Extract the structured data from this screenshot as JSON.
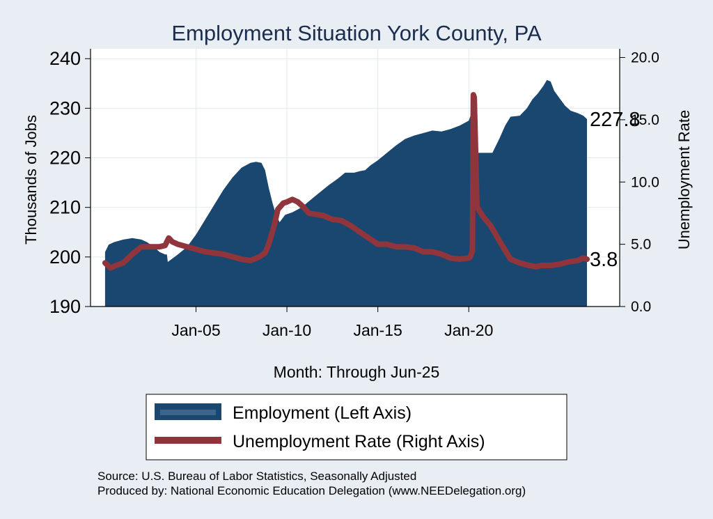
{
  "chart_data": {
    "type": "area+line (dual axis)",
    "title": "Employment Situation York  County, PA",
    "xlabel": "Month: Through Jun-25",
    "ylabel_left": "Thousands of Jobs",
    "ylabel_right": "Unemployment Rate",
    "x_ticks": [
      "Jan-05",
      "Jan-10",
      "Jan-15",
      "Jan-20"
    ],
    "y_left_ticks": [
      "190",
      "200",
      "210",
      "220",
      "230",
      "240"
    ],
    "y_right_ticks": [
      "0.0",
      "5.0",
      "10.0",
      "15.0",
      "20.0"
    ],
    "ylim_left": [
      190,
      242
    ],
    "ylim_right": [
      0,
      20.7
    ],
    "xlim": [
      1999.2,
      2028.3
    ],
    "x_data_start": "Jan-00",
    "x_data_end": "Jun-25",
    "last_employment_label": "227.8",
    "last_unemployment_label": "3.8",
    "series": [
      {
        "name": "Employment (Left Axis)",
        "color": "#1a476f",
        "axis": "left",
        "points": [
          [
            2000.0,
            201
          ],
          [
            2000.2,
            202.5
          ],
          [
            2000.5,
            203
          ],
          [
            2001.0,
            203.5
          ],
          [
            2001.5,
            203.8
          ],
          [
            2002.0,
            203.5
          ],
          [
            2002.3,
            203
          ],
          [
            2002.7,
            202
          ],
          [
            2003.0,
            201
          ],
          [
            2003.3,
            200.5
          ],
          [
            2003.4,
            200.5
          ],
          [
            2003.45,
            199
          ],
          [
            2004.0,
            200.5
          ],
          [
            2004.5,
            202
          ],
          [
            2005.0,
            204.5
          ],
          [
            2005.5,
            207.5
          ],
          [
            2006.0,
            210.5
          ],
          [
            2006.5,
            213.5
          ],
          [
            2007.0,
            216
          ],
          [
            2007.5,
            218
          ],
          [
            2008.0,
            219
          ],
          [
            2008.3,
            219.2
          ],
          [
            2008.6,
            219
          ],
          [
            2008.8,
            217.5
          ],
          [
            2009.0,
            214
          ],
          [
            2009.2,
            211
          ],
          [
            2009.4,
            208.5
          ],
          [
            2009.6,
            207
          ],
          [
            2009.9,
            208.5
          ],
          [
            2010.3,
            209
          ],
          [
            2010.8,
            210
          ],
          [
            2011.3,
            211.5
          ],
          [
            2011.8,
            213
          ],
          [
            2012.3,
            214.5
          ],
          [
            2012.8,
            215.8
          ],
          [
            2013.2,
            217
          ],
          [
            2013.7,
            217
          ],
          [
            2014.0,
            217.3
          ],
          [
            2014.3,
            217.5
          ],
          [
            2014.6,
            218.5
          ],
          [
            2015.0,
            219.5
          ],
          [
            2015.5,
            221
          ],
          [
            2016.0,
            222.5
          ],
          [
            2016.5,
            223.8
          ],
          [
            2017.0,
            224.5
          ],
          [
            2017.5,
            225
          ],
          [
            2018.0,
            225.5
          ],
          [
            2018.5,
            225.3
          ],
          [
            2019.0,
            225.8
          ],
          [
            2019.5,
            226.5
          ],
          [
            2020.0,
            227.5
          ],
          [
            2020.1,
            228.5
          ],
          [
            2020.2,
            228.8
          ],
          [
            2020.25,
            210
          ],
          [
            2020.3,
            210
          ],
          [
            2020.45,
            221
          ],
          [
            2020.8,
            221
          ],
          [
            2021.3,
            221
          ],
          [
            2021.7,
            224
          ],
          [
            2022.0,
            226.5
          ],
          [
            2022.3,
            228.3
          ],
          [
            2022.8,
            228.5
          ],
          [
            2023.2,
            230
          ],
          [
            2023.5,
            231.8
          ],
          [
            2023.8,
            233
          ],
          [
            2024.1,
            234.5
          ],
          [
            2024.3,
            235.7
          ],
          [
            2024.5,
            235.4
          ],
          [
            2024.7,
            233.5
          ],
          [
            2025.0,
            232
          ],
          [
            2025.3,
            230.5
          ],
          [
            2025.6,
            229.5
          ],
          [
            2026.0,
            229
          ],
          [
            2026.3,
            228.5
          ],
          [
            2026.5,
            227.8
          ]
        ]
      },
      {
        "name": "Unemployment Rate (Right Axis)",
        "color": "#90353b",
        "axis": "right",
        "points": [
          [
            2000.0,
            3.5
          ],
          [
            2000.3,
            3.1
          ],
          [
            2000.6,
            3.3
          ],
          [
            2001.0,
            3.5
          ],
          [
            2001.5,
            4.2
          ],
          [
            2002.0,
            4.8
          ],
          [
            2002.5,
            4.8
          ],
          [
            2003.0,
            4.8
          ],
          [
            2003.3,
            4.9
          ],
          [
            2003.5,
            5.5
          ],
          [
            2003.7,
            5.2
          ],
          [
            2004.0,
            5.0
          ],
          [
            2004.5,
            4.8
          ],
          [
            2005.0,
            4.6
          ],
          [
            2005.5,
            4.4
          ],
          [
            2006.0,
            4.3
          ],
          [
            2006.5,
            4.2
          ],
          [
            2007.0,
            4.0
          ],
          [
            2007.5,
            3.8
          ],
          [
            2008.0,
            3.7
          ],
          [
            2008.5,
            4.0
          ],
          [
            2008.8,
            4.3
          ],
          [
            2009.0,
            5.0
          ],
          [
            2009.3,
            6.5
          ],
          [
            2009.5,
            7.8
          ],
          [
            2009.8,
            8.3
          ],
          [
            2010.0,
            8.4
          ],
          [
            2010.3,
            8.6
          ],
          [
            2010.6,
            8.4
          ],
          [
            2010.9,
            8.0
          ],
          [
            2011.2,
            7.5
          ],
          [
            2011.6,
            7.4
          ],
          [
            2012.0,
            7.3
          ],
          [
            2012.5,
            7.0
          ],
          [
            2013.0,
            6.9
          ],
          [
            2013.5,
            6.5
          ],
          [
            2014.0,
            6.0
          ],
          [
            2014.5,
            5.5
          ],
          [
            2015.0,
            5.0
          ],
          [
            2015.5,
            5.0
          ],
          [
            2016.0,
            4.8
          ],
          [
            2016.5,
            4.8
          ],
          [
            2017.0,
            4.7
          ],
          [
            2017.5,
            4.4
          ],
          [
            2018.0,
            4.4
          ],
          [
            2018.5,
            4.2
          ],
          [
            2019.0,
            3.9
          ],
          [
            2019.5,
            3.8
          ],
          [
            2020.0,
            3.9
          ],
          [
            2020.1,
            4.0
          ],
          [
            2020.2,
            4.5
          ],
          [
            2020.25,
            17.0
          ],
          [
            2020.3,
            16.8
          ],
          [
            2020.45,
            8.0
          ],
          [
            2020.8,
            7.2
          ],
          [
            2021.2,
            6.5
          ],
          [
            2021.6,
            5.5
          ],
          [
            2022.0,
            4.5
          ],
          [
            2022.3,
            3.8
          ],
          [
            2022.8,
            3.5
          ],
          [
            2023.3,
            3.3
          ],
          [
            2023.7,
            3.2
          ],
          [
            2024.0,
            3.3
          ],
          [
            2024.5,
            3.3
          ],
          [
            2025.0,
            3.4
          ],
          [
            2025.5,
            3.6
          ],
          [
            2026.0,
            3.7
          ],
          [
            2026.3,
            3.9
          ],
          [
            2026.5,
            3.8
          ]
        ]
      }
    ],
    "legend": {
      "placement": "bottom",
      "items": [
        "Employment (Left Axis)",
        "Unemployment Rate (Right Axis)"
      ]
    },
    "notes": [
      "Source: U.S. Bureau of Labor Statistics, Seasonally Adjusted",
      "Produced by: National Economic Education Delegation (www.NEEDelegation.org)"
    ],
    "colors": {
      "background": "#e8eef4",
      "plot_background": "#ffffff",
      "gridline": "#e3e9ef",
      "axis": "#000000",
      "title_text": "#1a2d4d"
    }
  }
}
